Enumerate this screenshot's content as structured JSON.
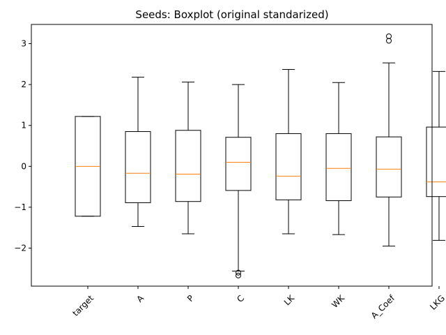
{
  "chart_data": {
    "type": "boxplot",
    "title": "Seeds: Boxplot (original standarized)",
    "xlabel": "",
    "ylabel": "",
    "ylim": [
      -2.93,
      3.47
    ],
    "yticks": [
      -2,
      -1,
      0,
      1,
      2,
      3
    ],
    "ytick_labels": [
      "−2",
      "−1",
      "0",
      "1",
      "2",
      "3"
    ],
    "categories": [
      "target",
      "A",
      "P",
      "C",
      "LK",
      "WK",
      "A_Coef",
      "LKG"
    ],
    "boxes": [
      {
        "label": "target",
        "whisker_low": -1.22,
        "q1": -1.22,
        "median": 0.0,
        "q3": 1.22,
        "whisker_high": 1.22,
        "outliers": []
      },
      {
        "label": "A",
        "whisker_low": -1.47,
        "q1": -0.89,
        "median": -0.17,
        "q3": 0.85,
        "whisker_high": 2.18,
        "outliers": []
      },
      {
        "label": "P",
        "whisker_low": -1.65,
        "q1": -0.86,
        "median": -0.19,
        "q3": 0.88,
        "whisker_high": 2.06,
        "outliers": []
      },
      {
        "label": "C",
        "whisker_low": -2.56,
        "q1": -0.59,
        "median": 0.1,
        "q3": 0.71,
        "whisker_high": 2.0,
        "outliers": [
          -2.6,
          -2.67
        ]
      },
      {
        "label": "LK",
        "whisker_low": -1.65,
        "q1": -0.82,
        "median": -0.24,
        "q3": 0.8,
        "whisker_high": 2.37,
        "outliers": []
      },
      {
        "label": "WK",
        "whisker_low": -1.67,
        "q1": -0.84,
        "median": -0.05,
        "q3": 0.8,
        "whisker_high": 2.05,
        "outliers": []
      },
      {
        "label": "A_Coef",
        "whisker_low": -1.95,
        "q1": -0.75,
        "median": -0.07,
        "q3": 0.72,
        "whisker_high": 2.53,
        "outliers": [
          3.07,
          3.18
        ]
      },
      {
        "label": "LKG",
        "whisker_low": -1.81,
        "q1": -0.74,
        "median": -0.38,
        "q3": 0.96,
        "whisker_high": 2.32,
        "outliers": []
      }
    ],
    "grid": false,
    "colors": {
      "box": "#000000",
      "median": "#ff7f0e",
      "background": "#ffffff"
    }
  }
}
